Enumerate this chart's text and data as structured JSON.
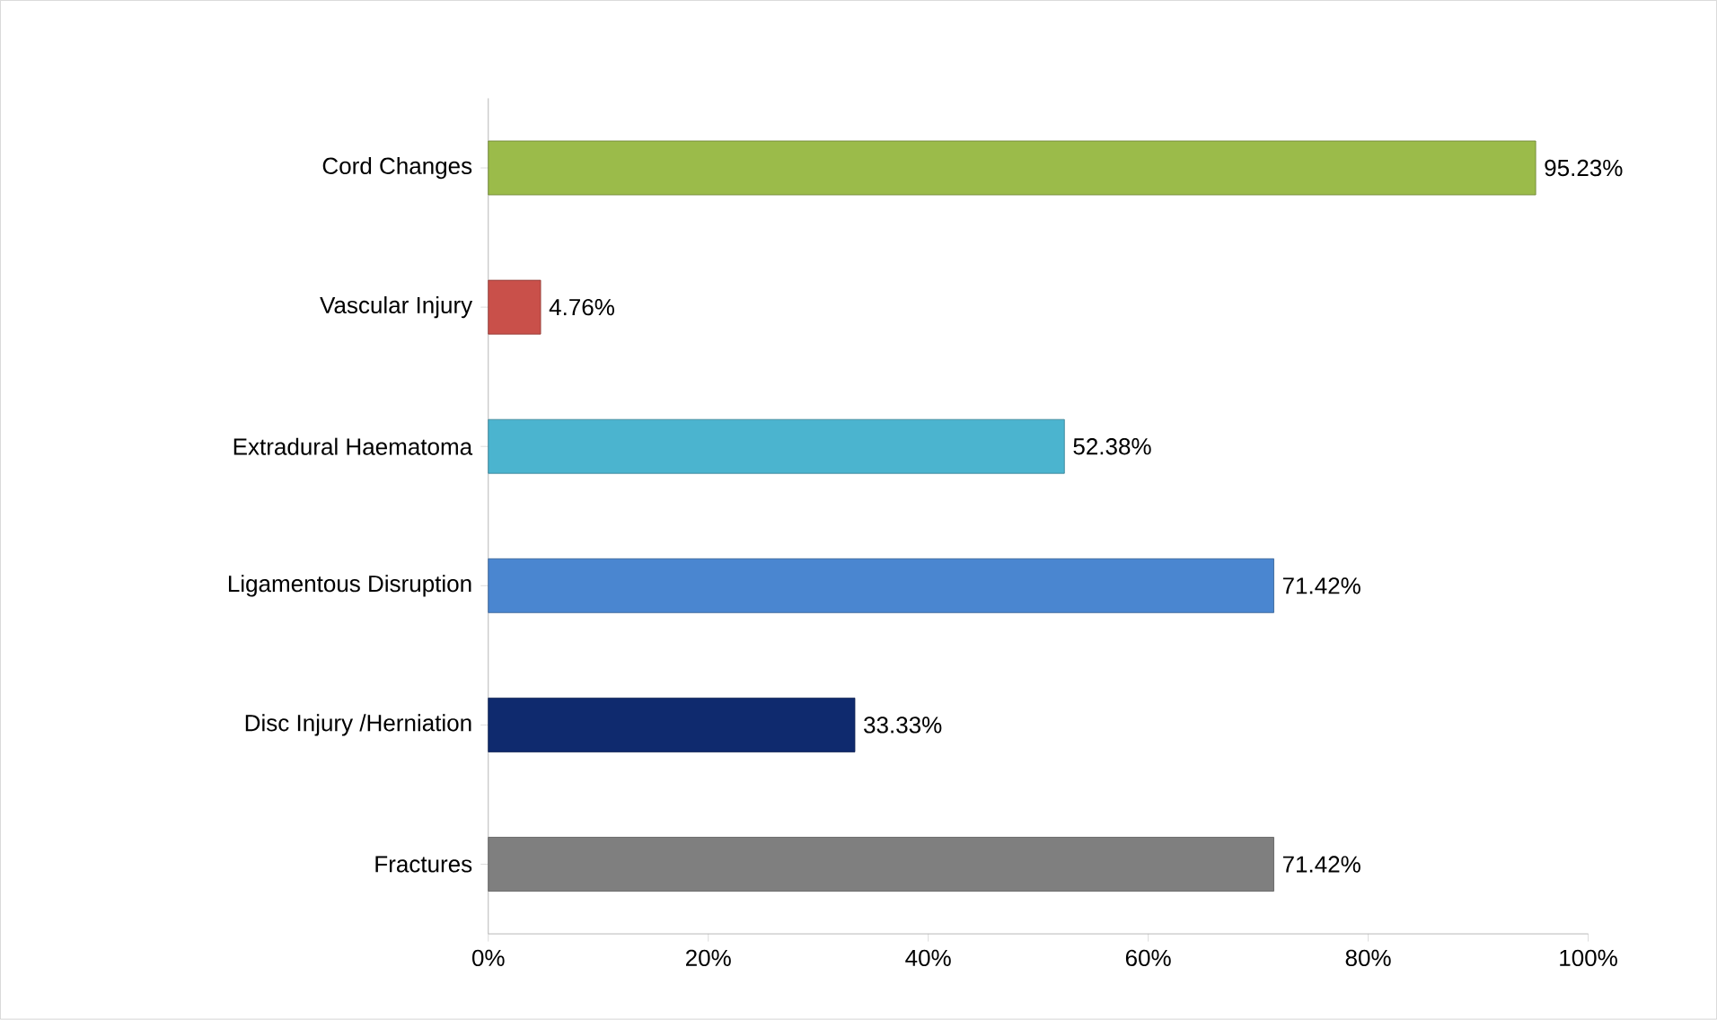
{
  "chart_data": {
    "type": "bar",
    "orientation": "horizontal",
    "categories": [
      "Cord Changes",
      "Vascular Injury",
      "Extradural Haematoma",
      "Ligamentous Disruption",
      "Disc Injury /Herniation",
      "Fractures"
    ],
    "values": [
      95.23,
      4.76,
      52.38,
      71.42,
      33.33,
      71.42
    ],
    "value_labels": [
      "95.23%",
      "4.76%",
      "52.38%",
      "71.42%",
      "33.33%",
      "71.42%"
    ],
    "colors": [
      "#9bbb4a",
      "#c9504a",
      "#4bb4cf",
      "#4a86d0",
      "#0f2a6e",
      "#7f7f7f"
    ],
    "xlim": [
      0,
      100
    ],
    "xticks": [
      {
        "value": 0,
        "label": "0%"
      },
      {
        "value": 20,
        "label": "20%"
      },
      {
        "value": 40,
        "label": "40%"
      },
      {
        "value": 60,
        "label": "60%"
      },
      {
        "value": 80,
        "label": "80%"
      },
      {
        "value": 100,
        "label": "100%"
      }
    ],
    "grid": false
  }
}
